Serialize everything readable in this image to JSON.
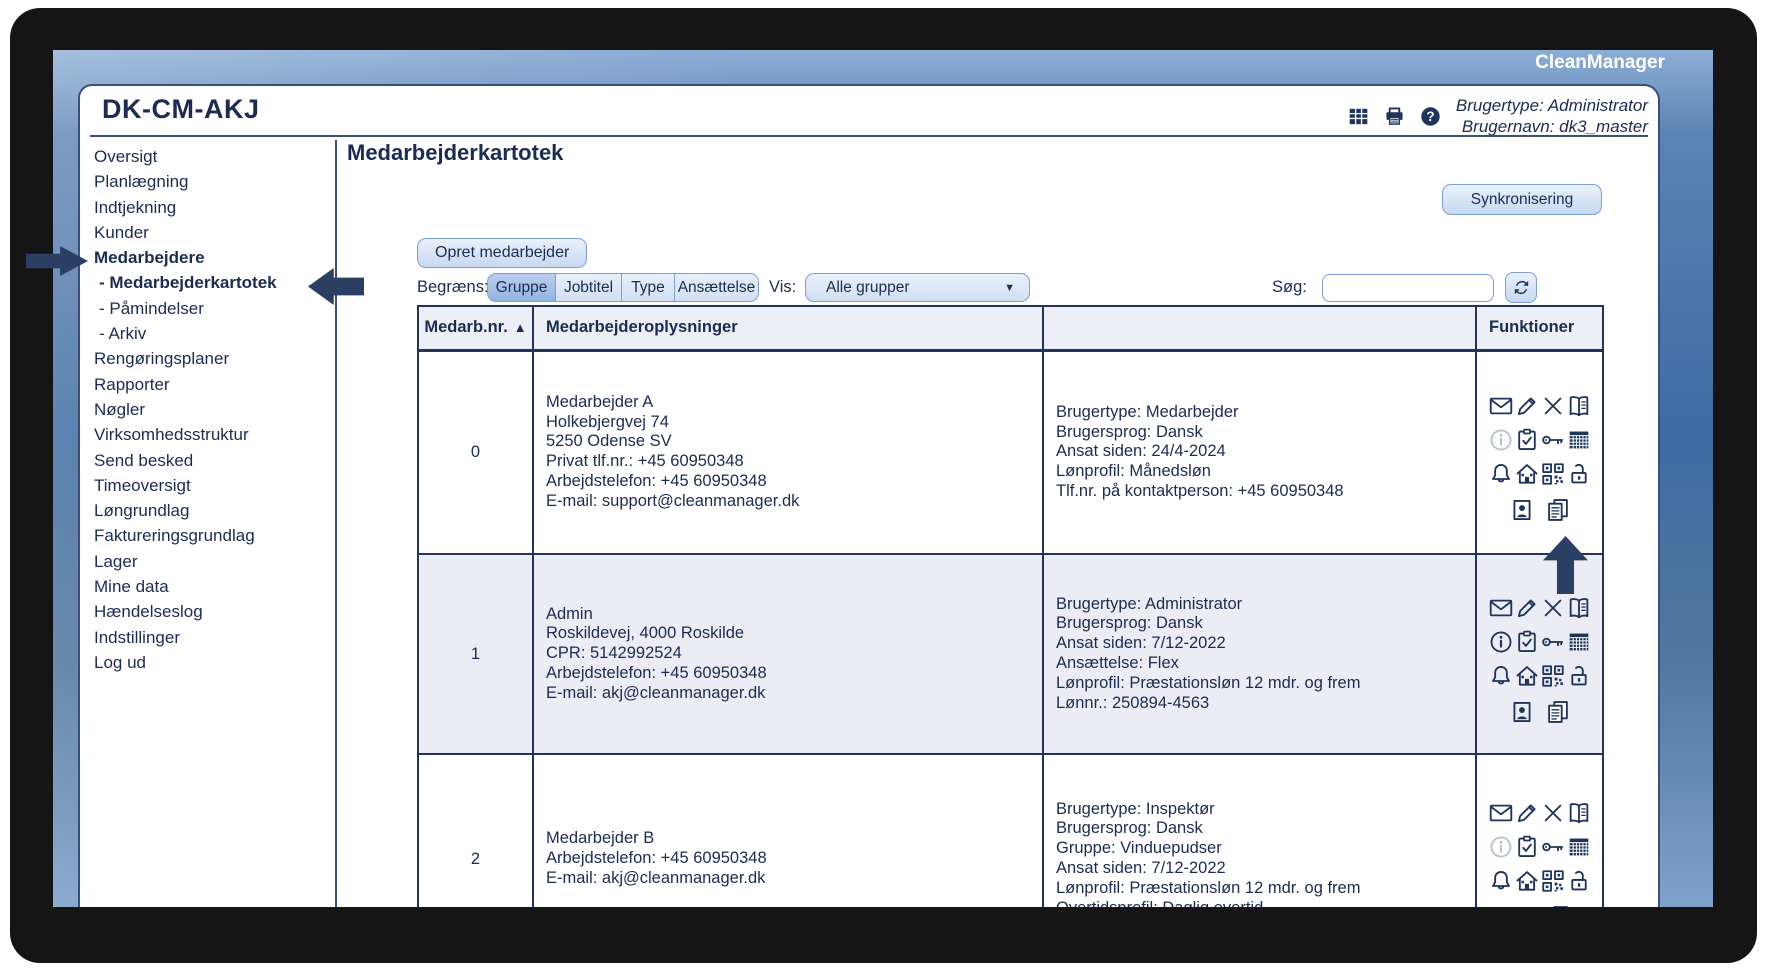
{
  "brand": "CleanManager",
  "header": {
    "title": "DK-CM-AKJ",
    "icons": [
      "table-icon",
      "print-icon",
      "help-icon"
    ],
    "user_type": "Brugertype: Administrator",
    "user_name": "Brugernavn: dk3_master"
  },
  "sidebar": {
    "items": [
      {
        "label": "Oversigt"
      },
      {
        "label": "Planlægning"
      },
      {
        "label": "Indtjekning"
      },
      {
        "label": "Kunder"
      },
      {
        "label": "Medarbejdere",
        "active": true
      },
      {
        "label": "- Medarbejderkartotek",
        "active": true,
        "indent": true
      },
      {
        "label": "- Påmindelser",
        "indent": true
      },
      {
        "label": "- Arkiv",
        "indent": true
      },
      {
        "label": "Rengøringsplaner"
      },
      {
        "label": "Rapporter"
      },
      {
        "label": "Nøgler"
      },
      {
        "label": "Virksomhedsstruktur"
      },
      {
        "label": "Send besked"
      },
      {
        "label": "Timeoversigt"
      },
      {
        "label": "Løngrundlag"
      },
      {
        "label": "Faktureringsgrundlag"
      },
      {
        "label": "Lager"
      },
      {
        "label": "Mine data"
      },
      {
        "label": "Hændelseslog"
      },
      {
        "label": "Indstillinger"
      },
      {
        "label": "Log ud"
      }
    ]
  },
  "main": {
    "page_title": "Medarbejderkartotek",
    "sync_button": "Synkronisering",
    "create_button": "Opret medarbejder",
    "filter": {
      "label": "Begræns:",
      "options": [
        {
          "label": "Gruppe",
          "selected": true
        },
        {
          "label": "Jobtitel",
          "selected": false
        },
        {
          "label": "Type",
          "selected": false
        },
        {
          "label": "Ansættelse",
          "selected": false
        }
      ],
      "vis_label": "Vis:",
      "vis_value": "Alle grupper",
      "search_label": "Søg:",
      "search_value": "",
      "refresh_icon": "refresh-icon"
    },
    "table": {
      "headers": [
        "Medarb.nr.",
        "Medarbejderoplysninger",
        "",
        "Funktioner"
      ],
      "sort_indicator": "▲",
      "function_icons": [
        "mail-icon",
        "edit-icon",
        "delete-icon",
        "logbook-icon",
        "info-icon",
        "checklist-icon",
        "key-icon",
        "schedule-icon",
        "notification-icon",
        "home-icon",
        "qr-code-icon",
        "unlock-icon",
        "photo-icon",
        "documents-icon"
      ],
      "rows": [
        {
          "nr": "0",
          "info": [
            "Medarbejder A",
            "Holkebjergvej 74",
            "5250 Odense SV",
            "Privat tlf.nr.: +45 60950348",
            "Arbejdstelefon: +45 60950348",
            "E-mail: support@cleanmanager.dk"
          ],
          "details": [
            "Brugertype: Medarbejder",
            "Brugersprog: Dansk",
            "Ansat siden: 24/4-2024",
            "Lønprofil: Månedsløn",
            "Tlf.nr. på kontaktperson: +45 60950348"
          ],
          "info_icon_disabled": true
        },
        {
          "nr": "1",
          "info": [
            "Admin",
            "Roskildevej, 4000 Roskilde",
            "CPR: 5142992524",
            "Arbejdstelefon: +45 60950348",
            "E-mail: akj@cleanmanager.dk"
          ],
          "details": [
            "Brugertype: Administrator",
            "Brugersprog: Dansk",
            "Ansat siden: 7/12-2022",
            "Ansættelse: Flex",
            "Lønprofil: Præstationsløn 12 mdr. og frem",
            "Lønnr.: 250894-4563"
          ],
          "info_icon_disabled": false
        },
        {
          "nr": "2",
          "info": [
            "Medarbejder B",
            "Arbejdstelefon: +45 60950348",
            "E-mail: akj@cleanmanager.dk"
          ],
          "details": [
            "Brugertype: Inspektør",
            "Brugersprog: Dansk",
            "Gruppe: Vinduepudser",
            "Ansat siden: 7/12-2022",
            "Lønprofil: Præstationsløn 12 mdr. og frem",
            "Overtidsprofil: Daglig overtid"
          ],
          "info_icon_disabled": true
        }
      ]
    }
  },
  "colors": {
    "accent_navy": "#223459",
    "screen_blue": "#3f6aa2",
    "row_alt": "#ebecf4",
    "button_blue": "#d6e3f6",
    "selected_segment": "#94b4e1"
  }
}
